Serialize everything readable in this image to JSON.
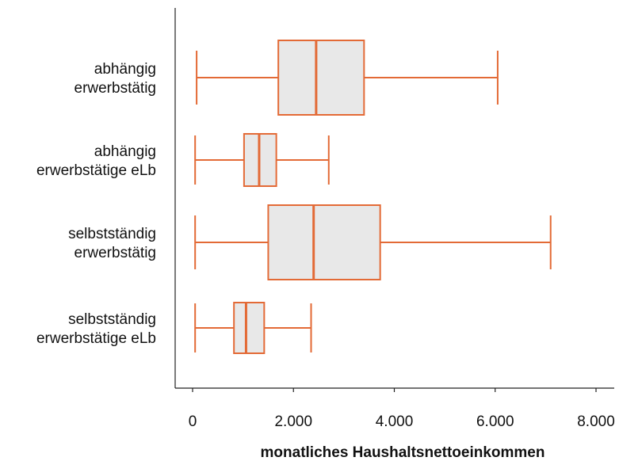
{
  "chart_data": {
    "type": "boxplot",
    "orientation": "horizontal",
    "xlabel": "monatliches Haushaltsnettoeinkommen",
    "ylabel": "",
    "xlim": [
      0,
      8000
    ],
    "xticks": [
      0,
      2000,
      4000,
      6000,
      8000
    ],
    "xtick_labels": [
      "0",
      "2.000",
      "4.000",
      "6.000",
      "8.000"
    ],
    "grid": false,
    "colors": {
      "box_stroke": "#e36a36",
      "box_fill": "#e8e8e8",
      "axis": "#222222"
    },
    "categories": [
      {
        "label_lines": [
          "abhängig",
          "erwerbstätig"
        ],
        "whisker_low": 80,
        "q1": 1700,
        "median": 2450,
        "q3": 3400,
        "whisker_high": 6050
      },
      {
        "label_lines": [
          "abhängig",
          "erwerbstätige eLb"
        ],
        "whisker_low": 50,
        "q1": 1020,
        "median": 1320,
        "q3": 1660,
        "whisker_high": 2700
      },
      {
        "label_lines": [
          "selbstständig",
          "erwerbstätig"
        ],
        "whisker_low": 50,
        "q1": 1500,
        "median": 2400,
        "q3": 3720,
        "whisker_high": 7100
      },
      {
        "label_lines": [
          "selbstständig",
          "erwerbstätige eLb"
        ],
        "whisker_low": 50,
        "q1": 820,
        "median": 1060,
        "q3": 1420,
        "whisker_high": 2350
      }
    ]
  }
}
